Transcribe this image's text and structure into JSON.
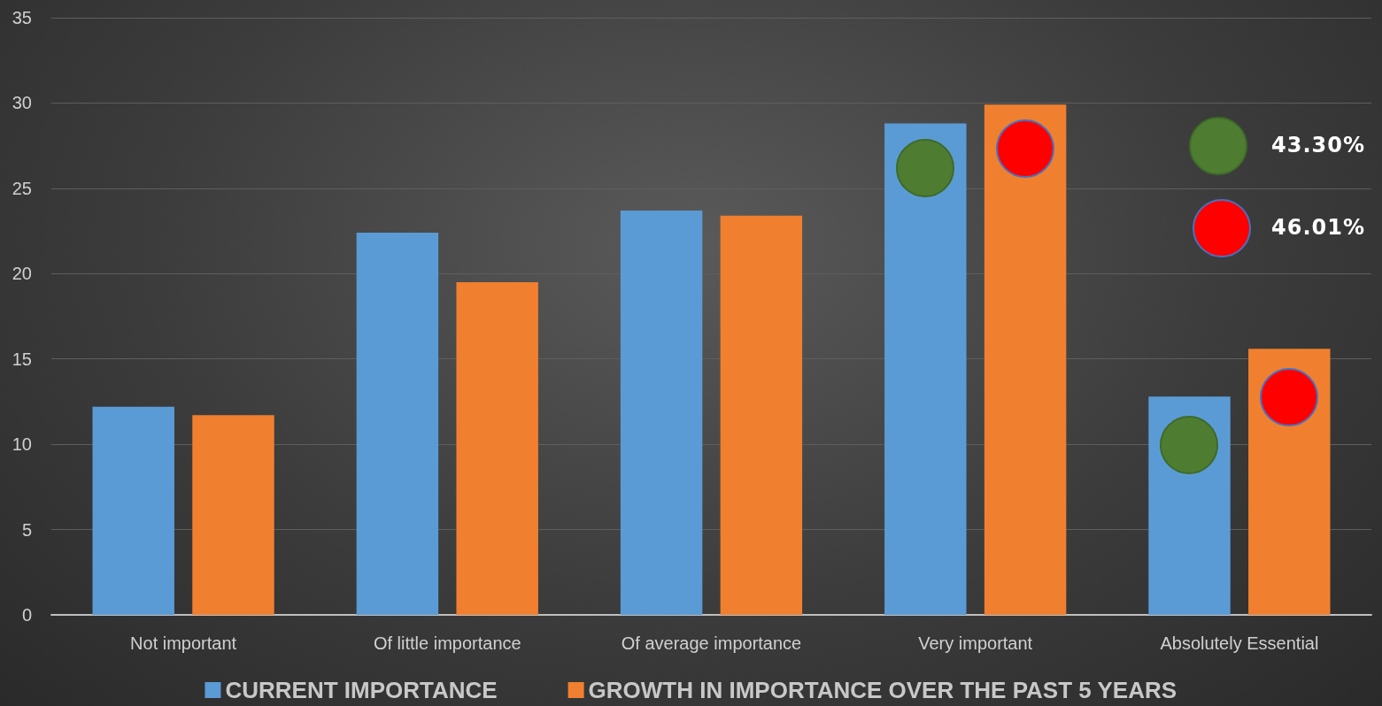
{
  "chart_data": {
    "type": "bar",
    "categories": [
      "Not important",
      "Of little importance",
      "Of average importance",
      "Very important",
      "Absolutely Essential"
    ],
    "series": [
      {
        "name": "CURRENT IMPORTANCE",
        "color": "#5b9bd5",
        "values": [
          12.2,
          22.4,
          23.7,
          28.8,
          12.8
        ]
      },
      {
        "name": "GROWTH IN IMPORTANCE OVER THE PAST 5 YEARS",
        "color": "#f0802f",
        "values": [
          11.7,
          19.5,
          23.4,
          29.9,
          15.6
        ]
      }
    ],
    "ylim": [
      0,
      35
    ],
    "yticks": [
      0,
      5,
      10,
      15,
      20,
      25,
      30,
      35
    ],
    "grid": "y",
    "legend": "bottom",
    "annotations": [
      "43.30%",
      "46.01%"
    ]
  }
}
